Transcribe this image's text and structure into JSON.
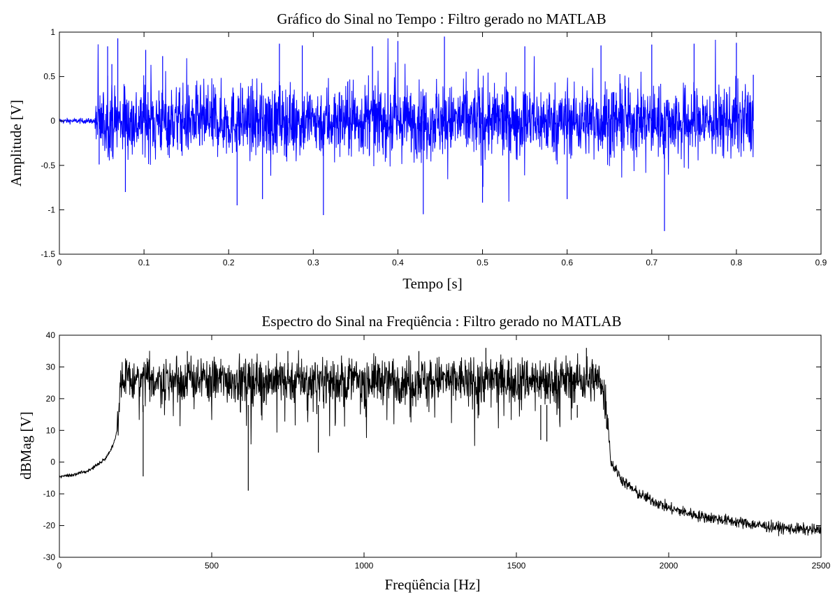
{
  "chart_data": [
    {
      "type": "line",
      "title": "Gráfico do Sinal no Tempo : Filtro gerado no MATLAB",
      "xlabel": "Tempo [s]",
      "ylabel": "Amplitude [V]",
      "xlim": [
        0,
        0.9
      ],
      "ylim": [
        -1.5,
        1
      ],
      "xticks": [
        "0",
        "0.1",
        "0.2",
        "0.3",
        "0.4",
        "0.5",
        "0.6",
        "0.7",
        "0.8",
        "0.9"
      ],
      "yticks": [
        "-1.5",
        "-1",
        "-0.5",
        "0",
        "0.5",
        "1"
      ],
      "grid": false,
      "series": [
        {
          "color": "#0000ff",
          "x_start": 0,
          "x_end": 0.82,
          "quiet_until": 0.042,
          "quiet_amplitude": 0.03,
          "typical_envelope": 0.35,
          "peaks": [
            [
              0.047,
              -0.49
            ],
            [
              0.057,
              0.84
            ],
            [
              0.062,
              0.64
            ],
            [
              0.069,
              0.93
            ],
            [
              0.078,
              -0.8
            ],
            [
              0.102,
              0.8
            ],
            [
              0.122,
              0.73
            ],
            [
              0.21,
              -0.95
            ],
            [
              0.24,
              -0.88
            ],
            [
              0.26,
              0.87
            ],
            [
              0.287,
              0.85
            ],
            [
              0.312,
              -1.06
            ],
            [
              0.37,
              0.84
            ],
            [
              0.4,
              0.9
            ],
            [
              0.43,
              -1.05
            ],
            [
              0.455,
              0.95
            ],
            [
              0.5,
              -0.92
            ],
            [
              0.55,
              0.84
            ],
            [
              0.6,
              -0.88
            ],
            [
              0.64,
              0.85
            ],
            [
              0.7,
              0.86
            ],
            [
              0.715,
              -1.24
            ],
            [
              0.75,
              0.87
            ],
            [
              0.8,
              0.88
            ],
            [
              0.82,
              0.52
            ]
          ]
        }
      ]
    },
    {
      "type": "line",
      "title": "Espectro do Sinal na Freqüência : Filtro gerado no MATLAB",
      "xlabel": "Freqüência [Hz]",
      "ylabel": "dBMag [V]",
      "xlim": [
        0,
        2500
      ],
      "ylim": [
        -30,
        40
      ],
      "xticks": [
        "0",
        "500",
        "1000",
        "1500",
        "2000",
        "2500"
      ],
      "yticks": [
        "-30",
        "-20",
        "-10",
        "0",
        "10",
        "20",
        "30",
        "40"
      ],
      "grid": false,
      "series": [
        {
          "color": "#000000",
          "passband": [
            190,
            1800
          ],
          "passband_level": 26,
          "envelope": [
            [
              0,
              -4.5
            ],
            [
              50,
              -4
            ],
            [
              100,
              -2.5
            ],
            [
              150,
              1
            ],
            [
              175,
              5
            ],
            [
              190,
              10
            ],
            [
              200,
              26
            ],
            [
              1780,
              26
            ],
            [
              1800,
              14
            ],
            [
              1810,
              0
            ],
            [
              1850,
              -6
            ],
            [
              1900,
              -10
            ],
            [
              2000,
              -14.5
            ],
            [
              2100,
              -17
            ],
            [
              2200,
              -18.5
            ],
            [
              2300,
              -20
            ],
            [
              2400,
              -21
            ],
            [
              2500,
              -21.5
            ]
          ],
          "dips": [
            [
              275,
              -4.5
            ],
            [
              620,
              -9
            ],
            [
              850,
              3
            ],
            [
              1580,
              7
            ],
            [
              1600,
              6.5
            ],
            [
              1700,
              14
            ]
          ],
          "peaks": [
            [
              420,
              35
            ],
            [
              750,
              35
            ],
            [
              1180,
              35
            ],
            [
              1400,
              36
            ],
            [
              1730,
              36
            ]
          ]
        }
      ]
    }
  ]
}
